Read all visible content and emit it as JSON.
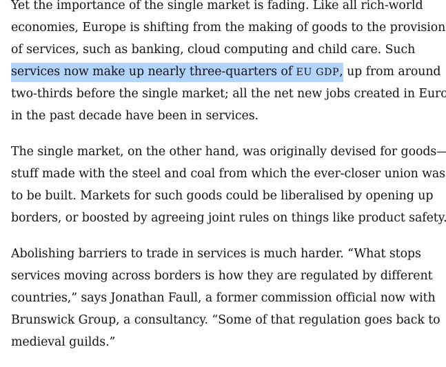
{
  "article": {
    "paragraphs": [
      {
        "lines": [
          "Yet the importance of the single market is fading. Like all rich-world",
          "economies, Europe is shifting from the making of goods to the provision",
          "of services, such as banking, cloud computing and child care. Such",
          {
            "highlighted_prefix": "services now make up nearly three-quarters of ",
            "highlighted_abbr": "EU GDP",
            "highlighted_suffix": ",",
            "rest": " up from around"
          },
          "two-thirds before the single market; all the net new jobs created in Europe",
          "in the past decade have been in services."
        ]
      },
      {
        "lines": [
          "The single market, on the other hand, was originally devised for goods—",
          "stuff made with the steel and coal from which the ever-closer union was",
          "to be built. Markets for such goods could be liberalised by opening up",
          "borders, or boosted by agreeing joint rules on things like product safety."
        ]
      },
      {
        "lines": [
          "Abolishing barriers to trade in services is much harder. “What stops",
          "services moving across borders is how they are regulated by different",
          "countries,” says Jonathan Faull, a former commission official now with",
          "Brunswick Group, a consultancy. “Some of that regulation goes back to",
          "medieval guilds.”"
        ]
      }
    ],
    "highlight_color": "#b3d4fd",
    "text_color": "#121212"
  }
}
